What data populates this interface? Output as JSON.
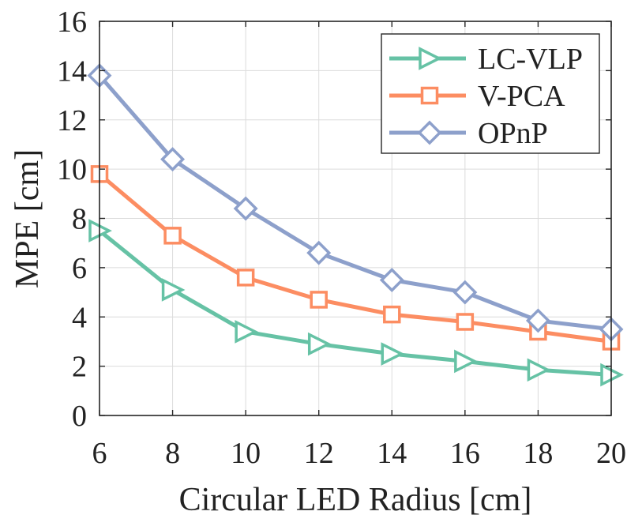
{
  "chart_data": {
    "type": "line",
    "title": "",
    "xlabel": "Circular LED Radius [cm]",
    "ylabel": "MPE [cm]",
    "x": [
      6,
      8,
      10,
      12,
      14,
      16,
      18,
      20
    ],
    "xlim": [
      6,
      20
    ],
    "ylim": [
      0,
      16
    ],
    "xticks": [
      "6",
      "8",
      "10",
      "12",
      "14",
      "16",
      "18",
      "20"
    ],
    "yticks": [
      "0",
      "2",
      "4",
      "6",
      "8",
      "10",
      "12",
      "14",
      "16"
    ],
    "grid": true,
    "legend_position": "top-right",
    "series": [
      {
        "name": "LC-VLP",
        "marker": "triangle-right",
        "color": "#66c2a5",
        "values": [
          7.5,
          5.1,
          3.4,
          2.9,
          2.5,
          2.2,
          1.85,
          1.65
        ]
      },
      {
        "name": "V-PCA",
        "marker": "square",
        "color": "#fc8d62",
        "values": [
          9.8,
          7.3,
          5.6,
          4.7,
          4.1,
          3.8,
          3.4,
          3.0
        ]
      },
      {
        "name": "OPnP",
        "marker": "diamond",
        "color": "#8da0cb",
        "values": [
          13.8,
          10.4,
          8.4,
          6.6,
          5.5,
          5.0,
          3.85,
          3.5
        ]
      }
    ]
  }
}
